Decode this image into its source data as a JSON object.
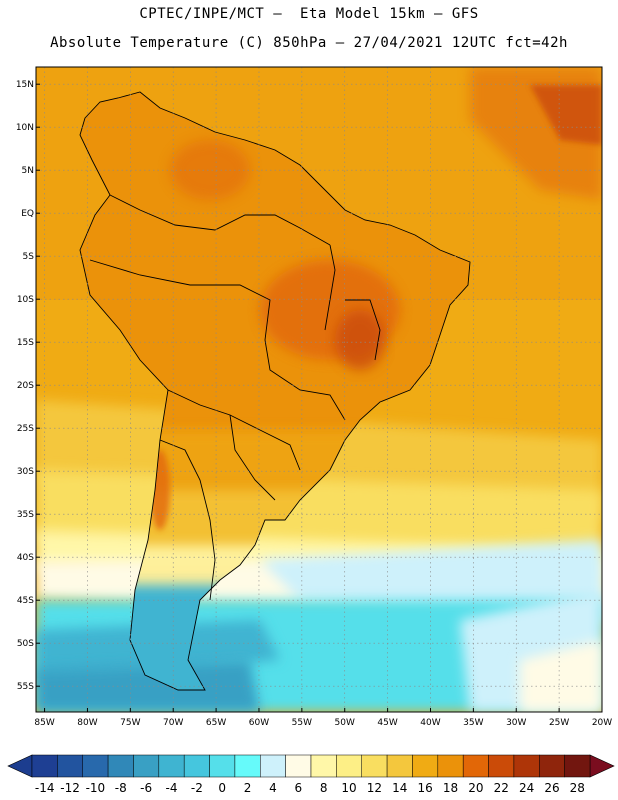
{
  "header": {
    "line1": "CPTEC/INPE/MCT –  Eta Model 15km – GFS",
    "line2": "Absolute Temperature (C) 850hPa – 27/04/2021 12UTC fct=42h"
  },
  "map": {
    "lat_labels": [
      "15N",
      "10N",
      "5N",
      "EQ",
      "5S",
      "10S",
      "15S",
      "20S",
      "25S",
      "30S",
      "35S",
      "40S",
      "45S",
      "50S",
      "55S"
    ],
    "lat_values": [
      15,
      10,
      5,
      0,
      -5,
      -10,
      -15,
      -20,
      -25,
      -30,
      -35,
      -40,
      -45,
      -50,
      -55
    ],
    "lon_labels": [
      "85W",
      "80W",
      "75W",
      "70W",
      "65W",
      "60W",
      "55W",
      "50W",
      "45W",
      "40W",
      "35W",
      "30W",
      "25W",
      "20W"
    ],
    "lon_values": [
      -85,
      -80,
      -75,
      -70,
      -65,
      -60,
      -55,
      -50,
      -45,
      -40,
      -35,
      -30,
      -25,
      -20
    ],
    "lat_range": [
      -58,
      17
    ],
    "lon_range": [
      -86,
      -20
    ]
  },
  "colorbar": {
    "labels": [
      "-14",
      "-12",
      "-10",
      "-8",
      "-6",
      "-4",
      "-2",
      "0",
      "2",
      "4",
      "6",
      "8",
      "10",
      "12",
      "14",
      "16",
      "18",
      "20",
      "22",
      "24",
      "26",
      "28"
    ],
    "colors": [
      "#1e3f93",
      "#22549f",
      "#2869ac",
      "#3088b8",
      "#39a0c4",
      "#3fb4d1",
      "#45c6de",
      "#55dfea",
      "#66fafa",
      "#cef1fb",
      "#fffbe6",
      "#fff7a8",
      "#fdef86",
      "#f9de60",
      "#f4c73d",
      "#f0ab14",
      "#eb920a",
      "#e26707",
      "#cb4b08",
      "#ae3508",
      "#8f250c",
      "#72160f"
    ],
    "min_color": "#1c3d8f",
    "max_color": "#7a0d1f"
  }
}
